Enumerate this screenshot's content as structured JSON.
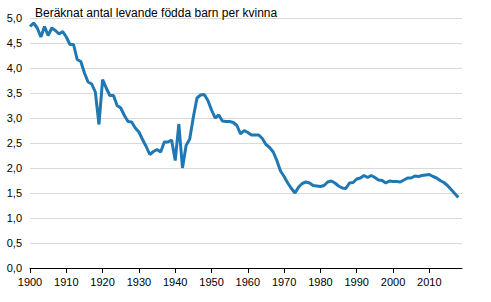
{
  "chart_data": {
    "type": "line",
    "title": "Beräknat antal levande födda barn per kvinna",
    "color": "#1f78b4",
    "grid": true,
    "x": [
      1900,
      1901,
      1902,
      1903,
      1904,
      1905,
      1906,
      1907,
      1908,
      1909,
      1910,
      1911,
      1912,
      1913,
      1914,
      1915,
      1916,
      1917,
      1918,
      1919,
      1920,
      1921,
      1922,
      1923,
      1924,
      1925,
      1926,
      1927,
      1928,
      1929,
      1930,
      1931,
      1932,
      1933,
      1934,
      1935,
      1936,
      1937,
      1938,
      1939,
      1940,
      1941,
      1942,
      1943,
      1944,
      1945,
      1946,
      1947,
      1948,
      1949,
      1950,
      1951,
      1952,
      1953,
      1954,
      1955,
      1956,
      1957,
      1958,
      1959,
      1960,
      1961,
      1962,
      1963,
      1964,
      1965,
      1966,
      1967,
      1968,
      1969,
      1970,
      1971,
      1972,
      1973,
      1974,
      1975,
      1976,
      1977,
      1978,
      1979,
      1980,
      1981,
      1982,
      1983,
      1984,
      1985,
      1986,
      1987,
      1988,
      1989,
      1990,
      1991,
      1992,
      1993,
      1994,
      1995,
      1996,
      1997,
      1998,
      1999,
      2000,
      2001,
      2002,
      2003,
      2004,
      2005,
      2006,
      2007,
      2008,
      2009,
      2010,
      2011,
      2012,
      2013,
      2014,
      2015,
      2016,
      2017,
      2018
    ],
    "values": [
      4.83,
      4.9,
      4.8,
      4.62,
      4.83,
      4.65,
      4.8,
      4.75,
      4.68,
      4.73,
      4.62,
      4.47,
      4.47,
      4.17,
      4.13,
      3.9,
      3.72,
      3.68,
      3.52,
      2.87,
      3.77,
      3.6,
      3.45,
      3.45,
      3.25,
      3.2,
      3.05,
      2.93,
      2.92,
      2.8,
      2.72,
      2.57,
      2.43,
      2.27,
      2.33,
      2.37,
      2.32,
      2.52,
      2.52,
      2.56,
      2.15,
      2.88,
      2.0,
      2.45,
      2.58,
      3.02,
      3.4,
      3.46,
      3.47,
      3.35,
      3.16,
      3.0,
      3.06,
      2.94,
      2.93,
      2.93,
      2.91,
      2.85,
      2.68,
      2.75,
      2.71,
      2.66,
      2.66,
      2.66,
      2.59,
      2.47,
      2.41,
      2.32,
      2.15,
      1.94,
      1.83,
      1.7,
      1.59,
      1.5,
      1.62,
      1.69,
      1.72,
      1.7,
      1.65,
      1.64,
      1.63,
      1.65,
      1.72,
      1.74,
      1.7,
      1.64,
      1.6,
      1.59,
      1.7,
      1.71,
      1.78,
      1.8,
      1.85,
      1.81,
      1.85,
      1.81,
      1.76,
      1.75,
      1.7,
      1.74,
      1.73,
      1.73,
      1.72,
      1.76,
      1.8,
      1.8,
      1.84,
      1.83,
      1.85,
      1.86,
      1.87,
      1.83,
      1.8,
      1.75,
      1.71,
      1.65,
      1.57,
      1.49,
      1.41
    ],
    "xlim": [
      1900,
      2019
    ],
    "xticks": [
      1900,
      1910,
      1920,
      1930,
      1940,
      1950,
      1960,
      1970,
      1980,
      1990,
      2000,
      2010
    ],
    "ylim": [
      0,
      5
    ],
    "yticks": [
      {
        "value": 0,
        "label": "0,0"
      },
      {
        "value": 0.5,
        "label": "0,5"
      },
      {
        "value": 1,
        "label": "1,0"
      },
      {
        "value": 1.5,
        "label": "1,5"
      },
      {
        "value": 2,
        "label": "2,0"
      },
      {
        "value": 2.5,
        "label": "2,5"
      },
      {
        "value": 3,
        "label": "3,0"
      },
      {
        "value": 3.5,
        "label": "3,5"
      },
      {
        "value": 4,
        "label": "4,0"
      },
      {
        "value": 4.5,
        "label": "4,5"
      },
      {
        "value": 5,
        "label": "5,0"
      }
    ]
  }
}
